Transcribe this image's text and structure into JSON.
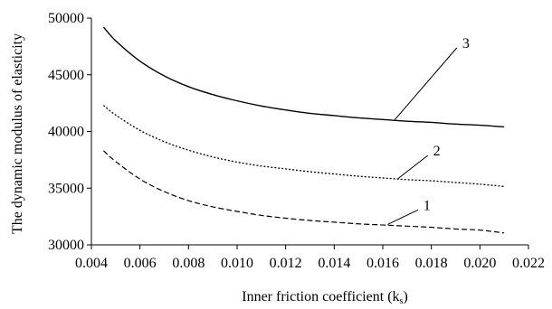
{
  "chart_data": {
    "type": "line",
    "title": "",
    "xlabel": "Inner friction coefficient (k",
    "xlabel_sub": "s",
    "xlabel_close": ")",
    "ylabel": "The dynamic modulus of elasticity",
    "xlim": [
      0.004,
      0.022
    ],
    "ylim": [
      30000,
      50000
    ],
    "x_ticks": [
      "0.004",
      "0.006",
      "0.008",
      "0.010",
      "0.012",
      "0.014",
      "0.016",
      "0.018",
      "0.020",
      "0.022"
    ],
    "y_ticks": [
      "30000",
      "35000",
      "40000",
      "45000",
      "50000"
    ],
    "grid": false,
    "legend": "none",
    "series": [
      {
        "name": "1",
        "style": "dashed",
        "label_anchor": [
          0.0162,
          31800
        ],
        "label_pos": [
          0.0176,
          33400
        ],
        "points": [
          [
            0.0045,
            38300
          ],
          [
            0.005,
            37350
          ],
          [
            0.006,
            35800
          ],
          [
            0.007,
            34700
          ],
          [
            0.008,
            33900
          ],
          [
            0.009,
            33350
          ],
          [
            0.01,
            32950
          ],
          [
            0.011,
            32600
          ],
          [
            0.012,
            32350
          ],
          [
            0.013,
            32150
          ],
          [
            0.014,
            32000
          ],
          [
            0.015,
            31850
          ],
          [
            0.016,
            31750
          ],
          [
            0.017,
            31650
          ],
          [
            0.018,
            31550
          ],
          [
            0.019,
            31400
          ],
          [
            0.02,
            31300
          ],
          [
            0.021,
            31050
          ]
        ]
      },
      {
        "name": "2",
        "style": "dotted",
        "label_anchor": [
          0.0166,
          35800
        ],
        "label_pos": [
          0.018,
          38200
        ],
        "points": [
          [
            0.0045,
            42300
          ],
          [
            0.005,
            41450
          ],
          [
            0.006,
            40100
          ],
          [
            0.007,
            39100
          ],
          [
            0.008,
            38350
          ],
          [
            0.009,
            37750
          ],
          [
            0.01,
            37300
          ],
          [
            0.011,
            36950
          ],
          [
            0.012,
            36700
          ],
          [
            0.013,
            36450
          ],
          [
            0.014,
            36250
          ],
          [
            0.015,
            36050
          ],
          [
            0.016,
            35900
          ],
          [
            0.017,
            35750
          ],
          [
            0.018,
            35650
          ],
          [
            0.019,
            35500
          ],
          [
            0.02,
            35350
          ],
          [
            0.021,
            35150
          ]
        ]
      },
      {
        "name": "3",
        "style": "solid",
        "label_anchor": [
          0.0165,
          41050
        ],
        "label_pos": [
          0.0192,
          47700
        ],
        "points": [
          [
            0.0045,
            49200
          ],
          [
            0.005,
            48000
          ],
          [
            0.006,
            46200
          ],
          [
            0.007,
            44900
          ],
          [
            0.008,
            43950
          ],
          [
            0.009,
            43250
          ],
          [
            0.01,
            42700
          ],
          [
            0.011,
            42250
          ],
          [
            0.012,
            41900
          ],
          [
            0.013,
            41600
          ],
          [
            0.014,
            41400
          ],
          [
            0.015,
            41200
          ],
          [
            0.016,
            41050
          ],
          [
            0.017,
            40900
          ],
          [
            0.018,
            40800
          ],
          [
            0.019,
            40650
          ],
          [
            0.02,
            40550
          ],
          [
            0.021,
            40400
          ]
        ]
      }
    ]
  }
}
